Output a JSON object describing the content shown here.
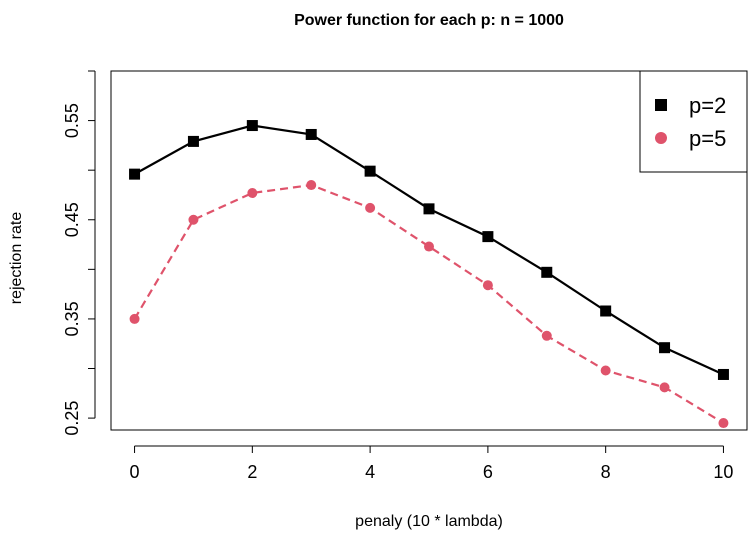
{
  "chart_data": {
    "type": "line",
    "title": "Power function for each p:   n = 1000",
    "xlabel": "penaly (10 * lambda)",
    "ylabel": "rejection rate",
    "x": [
      0,
      1,
      2,
      3,
      4,
      5,
      6,
      7,
      8,
      9,
      10
    ],
    "xlim": [
      -0.4,
      10.4
    ],
    "ylim": [
      0.238,
      0.6
    ],
    "x_ticks": [
      "0",
      "2",
      "4",
      "6",
      "8",
      "10"
    ],
    "y_ticks": [
      "0.25",
      "0.35",
      "0.45",
      "0.55"
    ],
    "legend_position": "top-right",
    "series": [
      {
        "name": "p=2",
        "values": [
          0.496,
          0.529,
          0.545,
          0.536,
          0.499,
          0.461,
          0.433,
          0.397,
          0.358,
          0.321,
          0.294
        ],
        "color": "#000000",
        "marker": "square",
        "line_style": "solid"
      },
      {
        "name": "p=5",
        "values": [
          0.35,
          0.45,
          0.477,
          0.485,
          0.462,
          0.423,
          0.384,
          0.333,
          0.298,
          0.281,
          0.245
        ],
        "color": "#DF536B",
        "marker": "circle",
        "line_style": "dashed"
      }
    ]
  }
}
